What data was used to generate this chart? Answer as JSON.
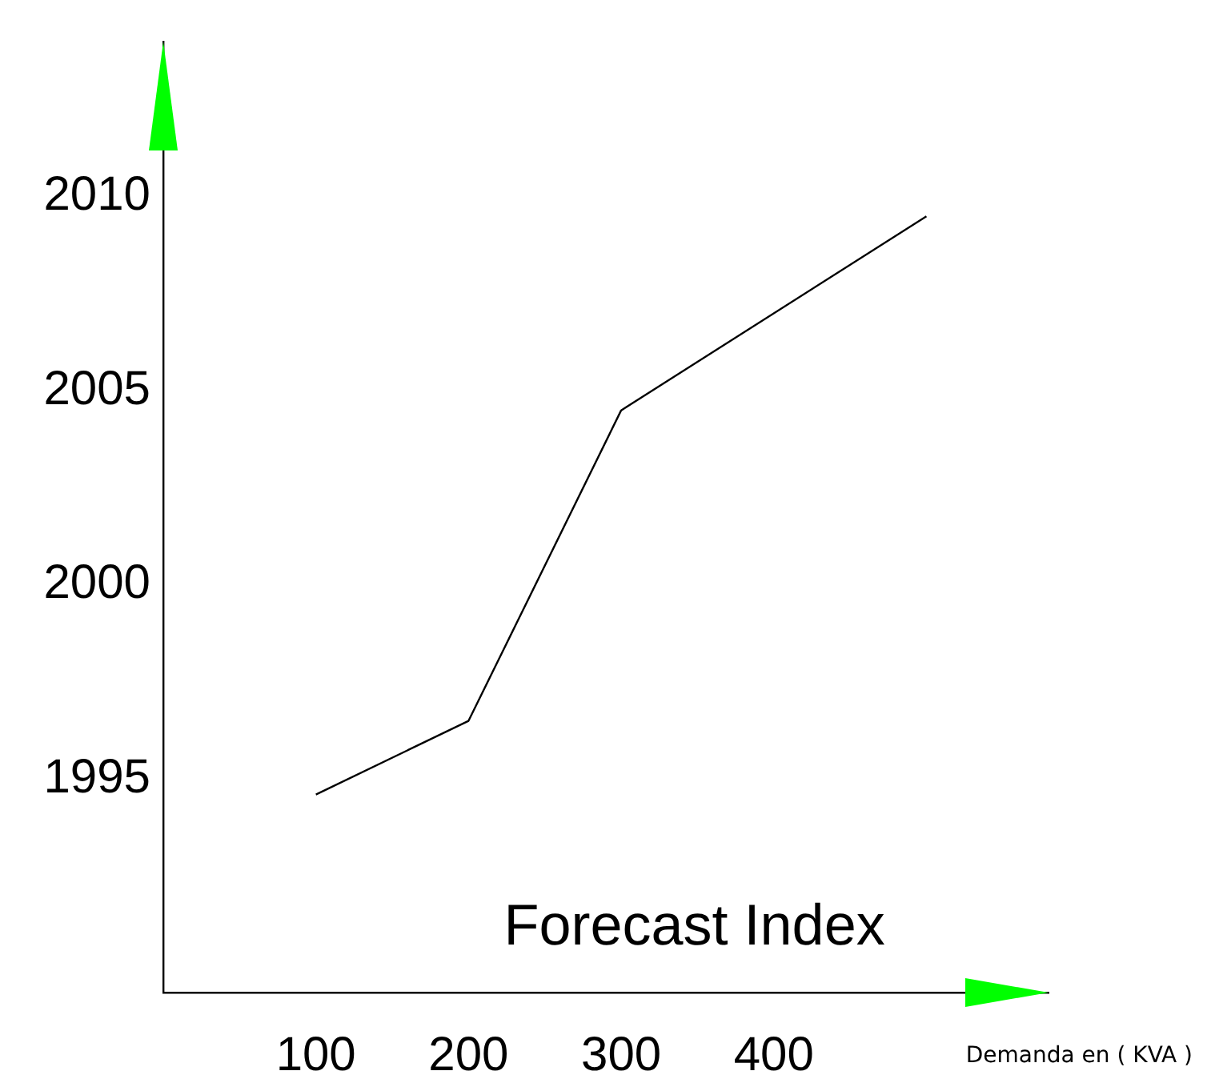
{
  "chart_data": {
    "type": "line",
    "title": "Forecast Index",
    "xlabel": "Demanda en ( KVA )",
    "x": [
      100,
      200,
      300,
      500
    ],
    "values": [
      1994.6,
      1996.5,
      2004.5,
      2009.5
    ],
    "color": "#000000",
    "marker": "none",
    "xlim": [
      0,
      580
    ],
    "xticks": [
      100,
      200,
      300,
      400
    ],
    "ylim": [
      1989.5,
      2014
    ],
    "yticks": [
      1995,
      2000,
      2005,
      2010
    ]
  }
}
